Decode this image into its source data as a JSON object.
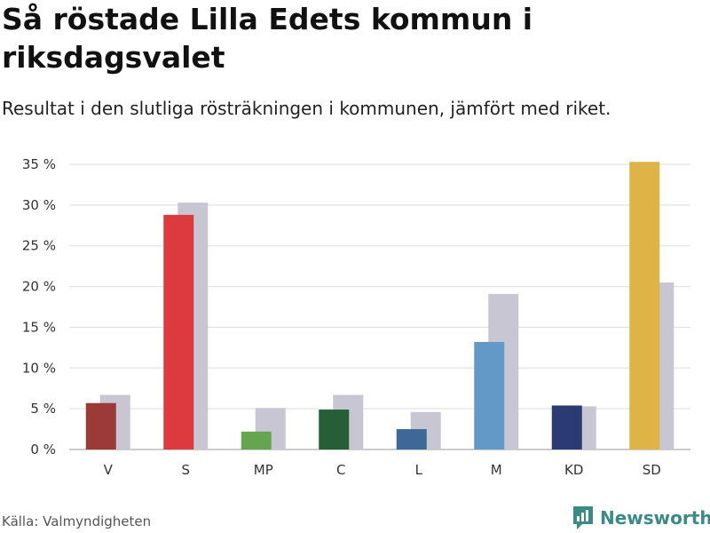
{
  "header": {
    "title": "Så röstade Lilla Edets kommun i riksdagsvalet",
    "subtitle": "Resultat i den slutliga rösträkningen i kommunen, jämfört med riket."
  },
  "footer": {
    "source": "Källa: Valmyndigheten",
    "brand": "Newsworthy"
  },
  "colors": {
    "brand": "#3a8a86",
    "national": "#c8c6d3",
    "grid": "#dddddd"
  },
  "chart_data": {
    "type": "bar",
    "title": "Så röstade Lilla Edets kommun i riksdagsvalet",
    "subtitle": "Resultat i den slutliga rösträkningen i kommunen, jämfört med riket.",
    "categories": [
      "V",
      "S",
      "MP",
      "C",
      "L",
      "M",
      "KD",
      "SD"
    ],
    "series": [
      {
        "name": "Lilla Edet",
        "values": [
          5.7,
          28.8,
          2.2,
          4.9,
          2.5,
          13.2,
          5.4,
          35.3
        ],
        "colors": [
          "#9b3a36",
          "#dc3a3e",
          "#65a550",
          "#265f36",
          "#3f6797",
          "#6399c8",
          "#2c3a74",
          "#ddb445"
        ]
      },
      {
        "name": "Riket",
        "values": [
          6.7,
          30.3,
          5.1,
          6.7,
          4.6,
          19.1,
          5.3,
          20.5
        ],
        "color": "#c8c6d3"
      }
    ],
    "ylim": [
      0,
      35
    ],
    "yticks": [
      0,
      5,
      10,
      15,
      20,
      25,
      30,
      35
    ],
    "tick_suffix": " %",
    "xlabel": "",
    "ylabel": "",
    "grid": true
  }
}
